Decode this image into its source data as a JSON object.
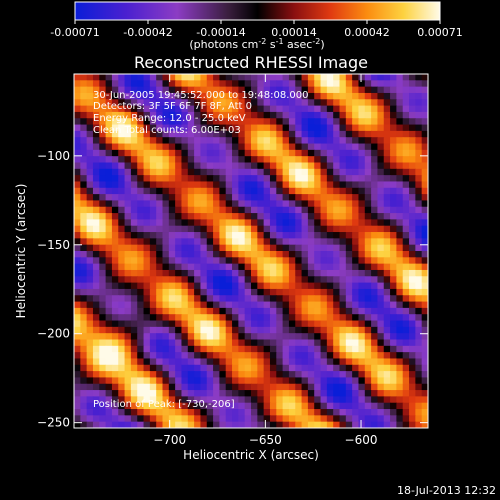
{
  "colorbar": {
    "ticks": [
      "-0.00071",
      "-0.00042",
      "-0.00014",
      "0.00014",
      "0.00042",
      "0.00071"
    ],
    "units_label": "(photons cm",
    "units_exp1": "-2",
    "units_mid": " s",
    "units_exp2": "-1",
    "units_end": " asec",
    "units_exp3": "-2",
    "units_close": ")"
  },
  "image": {
    "title": "Reconstructed RHESSI Image",
    "info_lines": [
      "30-Jun-2005 19:45:52.000 to 19:48:08.000",
      "Detectors: 3F 5F 6F 7F 8F, Att 0",
      "Energy Range: 12.0 - 25.0 keV",
      "Clean      Total counts: 6.00E+03"
    ],
    "peak_label": "Position of Peak: [-730,-206]",
    "peak": [
      -730,
      -206
    ]
  },
  "axes": {
    "x_label": "Heliocentric X (arcsec)",
    "y_label": "Heliocentric Y (arcsec)",
    "x_range": [
      -750,
      -565
    ],
    "y_range": [
      -253,
      -54
    ],
    "x_ticks": [
      {
        "value": -700,
        "label": "−700"
      },
      {
        "value": -650,
        "label": "−650"
      },
      {
        "value": -600,
        "label": "−600"
      }
    ],
    "y_ticks": [
      {
        "value": -100,
        "label": "−100"
      },
      {
        "value": -150,
        "label": "−150"
      },
      {
        "value": -200,
        "label": "−200"
      },
      {
        "value": -250,
        "label": "−250"
      }
    ]
  },
  "footer": {
    "timestamp": "18-Jul-2013 12:32"
  }
}
